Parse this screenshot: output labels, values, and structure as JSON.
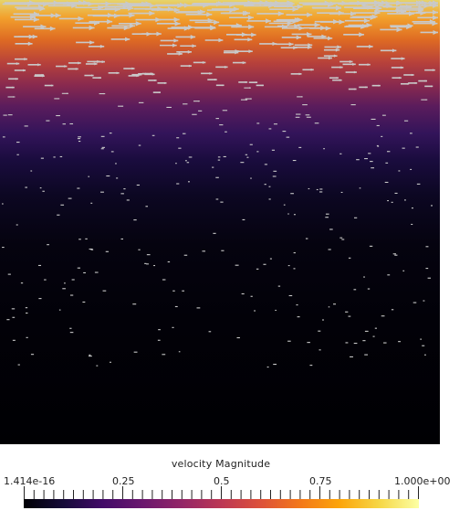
{
  "colorbar": {
    "title": "velocity Magnitude",
    "colormap": "inferno",
    "min_label": "1.414e-16",
    "max_label": "1.000e+00",
    "ticks": [
      {
        "value": 0.0,
        "label": "1.414e-16"
      },
      {
        "value": 0.25,
        "label": "0.25"
      },
      {
        "value": 0.5,
        "label": "0.5"
      },
      {
        "value": 0.75,
        "label": "0.75"
      },
      {
        "value": 1.0,
        "label": "1.000e+00"
      }
    ]
  },
  "colors": {
    "arrow": "#c9c9c9",
    "background": "#ffffff",
    "text": "#222222"
  }
}
